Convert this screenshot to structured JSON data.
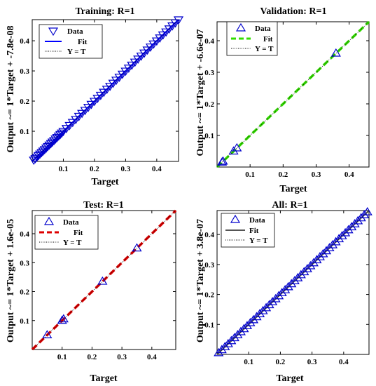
{
  "chart_data": [
    {
      "type": "scatter",
      "title": "Training: R=1",
      "xlabel": "Target",
      "ylabel": "Output ~= 1*Target + -7.8e-08",
      "xlim": [
        0,
        0.47
      ],
      "ylim": [
        0,
        0.47
      ],
      "xticks": [
        "0.1",
        "0.2",
        "0.3",
        "0.4"
      ],
      "yticks": [
        "0.1",
        "0.2",
        "0.3",
        "0.4"
      ],
      "marker": "triangle-down",
      "legend": {
        "placement": "top-left",
        "entries": [
          "Data",
          "Fit",
          "Y = T"
        ]
      },
      "fit_color": "#0000ff",
      "fit_style": "solid",
      "series": [
        {
          "name": "Data",
          "x": [
            0.005,
            0.01,
            0.015,
            0.02,
            0.025,
            0.03,
            0.035,
            0.04,
            0.045,
            0.05,
            0.055,
            0.06,
            0.065,
            0.07,
            0.075,
            0.08,
            0.085,
            0.09,
            0.095,
            0.1,
            0.11,
            0.12,
            0.13,
            0.14,
            0.15,
            0.16,
            0.17,
            0.18,
            0.19,
            0.2,
            0.21,
            0.22,
            0.23,
            0.24,
            0.25,
            0.26,
            0.27,
            0.28,
            0.29,
            0.3,
            0.31,
            0.32,
            0.33,
            0.34,
            0.35,
            0.36,
            0.37,
            0.38,
            0.39,
            0.4,
            0.41,
            0.42,
            0.43,
            0.44,
            0.45,
            0.46,
            0.47
          ],
          "y": [
            0.005,
            0.01,
            0.015,
            0.02,
            0.025,
            0.03,
            0.035,
            0.04,
            0.045,
            0.05,
            0.055,
            0.06,
            0.065,
            0.07,
            0.075,
            0.08,
            0.085,
            0.09,
            0.095,
            0.1,
            0.11,
            0.12,
            0.13,
            0.14,
            0.15,
            0.16,
            0.17,
            0.18,
            0.19,
            0.2,
            0.21,
            0.22,
            0.23,
            0.24,
            0.25,
            0.26,
            0.27,
            0.28,
            0.29,
            0.3,
            0.31,
            0.32,
            0.33,
            0.34,
            0.35,
            0.36,
            0.37,
            0.38,
            0.39,
            0.4,
            0.41,
            0.42,
            0.43,
            0.44,
            0.45,
            0.46,
            0.47
          ]
        }
      ]
    },
    {
      "type": "scatter",
      "title": "Validation: R=1",
      "xlabel": "Target",
      "ylabel": "Output ~= 1*Target + -6.6e-07",
      "xlim": [
        0,
        0.46
      ],
      "ylim": [
        0,
        0.46
      ],
      "xticks": [
        "0.1",
        "0.2",
        "0.3",
        "0.4"
      ],
      "yticks": [
        "0.1",
        "0.2",
        "0.3",
        "0.4"
      ],
      "marker": "triangle-up",
      "legend": {
        "placement": "top-left",
        "entries": [
          "Data",
          "Fit",
          "Y = T"
        ]
      },
      "fit_color": "#33dd00",
      "fit_style": "dashed",
      "series": [
        {
          "name": "Data",
          "x": [
            0.015,
            0.018,
            0.05,
            0.06,
            0.36
          ],
          "y": [
            0.015,
            0.018,
            0.05,
            0.06,
            0.36
          ]
        }
      ]
    },
    {
      "type": "scatter",
      "title": "Test: R=1",
      "xlabel": "Target",
      "ylabel": "Output ~= 1*Target + 1.6e-05",
      "xlim": [
        0,
        0.48
      ],
      "ylim": [
        0,
        0.48
      ],
      "xticks": [
        "0.1",
        "0.2",
        "0.3",
        "0.4"
      ],
      "yticks": [
        "0.1",
        "0.2",
        "0.3",
        "0.4"
      ],
      "marker": "triangle-up",
      "legend": {
        "placement": "top-left",
        "entries": [
          "Data",
          "Fit",
          "Y = T"
        ]
      },
      "fit_color": "#dd0000",
      "fit_style": "dashed",
      "series": [
        {
          "name": "Data",
          "x": [
            0.05,
            0.1,
            0.105,
            0.235,
            0.35
          ],
          "y": [
            0.05,
            0.1,
            0.105,
            0.235,
            0.35
          ]
        }
      ]
    },
    {
      "type": "scatter",
      "title": "All: R=1",
      "xlabel": "Target",
      "ylabel": "Output ~= 1*Target + 3.8e-07",
      "xlim": [
        0,
        0.48
      ],
      "ylim": [
        0,
        0.48
      ],
      "xticks": [
        "0.1",
        "0.2",
        "0.3",
        "0.4"
      ],
      "yticks": [
        "0.1",
        "0.2",
        "0.3",
        "0.4"
      ],
      "marker": "triangle-up",
      "legend": {
        "placement": "top-left",
        "entries": [
          "Data",
          "Fit",
          "Y = T"
        ]
      },
      "fit_color": "#555555",
      "fit_style": "solid",
      "series": [
        {
          "name": "Data",
          "x": [
            0.005,
            0.015,
            0.025,
            0.035,
            0.045,
            0.055,
            0.065,
            0.075,
            0.085,
            0.095,
            0.105,
            0.115,
            0.125,
            0.135,
            0.145,
            0.155,
            0.165,
            0.175,
            0.185,
            0.195,
            0.205,
            0.215,
            0.225,
            0.235,
            0.245,
            0.255,
            0.265,
            0.275,
            0.285,
            0.295,
            0.305,
            0.315,
            0.325,
            0.335,
            0.345,
            0.355,
            0.365,
            0.375,
            0.385,
            0.395,
            0.405,
            0.415,
            0.425,
            0.435,
            0.445,
            0.455,
            0.465,
            0.475
          ],
          "y": [
            0.005,
            0.015,
            0.025,
            0.035,
            0.045,
            0.055,
            0.065,
            0.075,
            0.085,
            0.095,
            0.105,
            0.115,
            0.125,
            0.135,
            0.145,
            0.155,
            0.165,
            0.175,
            0.185,
            0.195,
            0.205,
            0.215,
            0.225,
            0.235,
            0.245,
            0.255,
            0.265,
            0.275,
            0.285,
            0.295,
            0.305,
            0.315,
            0.325,
            0.335,
            0.345,
            0.355,
            0.365,
            0.375,
            0.385,
            0.395,
            0.405,
            0.415,
            0.425,
            0.435,
            0.445,
            0.455,
            0.465,
            0.475
          ]
        }
      ]
    }
  ],
  "colors": {
    "marker": "#0000cc",
    "identity_line": "#000000"
  }
}
